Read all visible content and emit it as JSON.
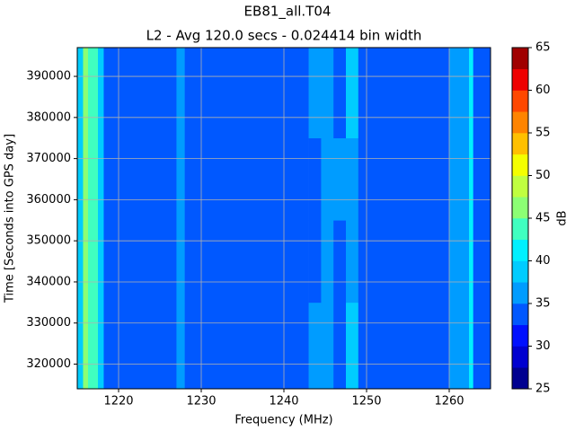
{
  "chart_data": {
    "type": "heatmap",
    "title": "EB81_all.T04",
    "subtitle": "L2 - Avg 120.0 secs - 0.024414 bin width",
    "xlabel": "Frequency (MHz)",
    "ylabel": "Time [Seconds into GPS day]",
    "colorbar_label": "dB",
    "x": [
      1215,
      1215.7,
      1216.3,
      1217.5,
      1218.2,
      1227,
      1228,
      1243,
      1244.5,
      1246,
      1247.5,
      1249,
      1260,
      1262.4,
      1262.9,
      1265
    ],
    "y": [
      314000,
      335000,
      355000,
      375000,
      397000
    ],
    "values": [
      [
        38,
        46,
        44,
        38,
        33,
        36,
        33,
        37,
        35,
        33,
        38,
        33,
        37,
        40,
        34
      ],
      [
        38,
        46,
        44,
        38,
        33,
        36,
        33,
        33,
        36,
        33,
        37,
        33,
        37,
        40,
        34
      ],
      [
        38,
        46,
        44,
        38,
        33,
        36,
        33,
        33,
        36,
        36,
        37,
        33,
        37,
        40,
        34
      ],
      [
        38,
        46,
        44,
        38,
        33,
        36,
        33,
        36,
        36,
        33,
        38,
        33,
        37,
        40,
        34
      ]
    ],
    "xlim": [
      1215,
      1265
    ],
    "ylim": [
      314000,
      397000
    ],
    "xticks": [
      1220,
      1230,
      1240,
      1250,
      1260
    ],
    "yticks": [
      320000,
      330000,
      340000,
      350000,
      360000,
      370000,
      380000,
      390000
    ],
    "clim": [
      25,
      65
    ],
    "cticks": [
      25,
      30,
      35,
      40,
      45,
      50,
      55,
      60,
      65
    ],
    "clevels": [
      25,
      27.5,
      30,
      32.5,
      35,
      37.5,
      40,
      42.5,
      45,
      47.5,
      50,
      52.5,
      55,
      57.5,
      60,
      62.5,
      65
    ],
    "colors": [
      "#000090",
      "#0000d0",
      "#0010ff",
      "#0058ff",
      "#009cff",
      "#00ccff",
      "#00f0ff",
      "#40ffc0",
      "#8cff74",
      "#c0ff40",
      "#f4ff00",
      "#ffc000",
      "#ff8400",
      "#ff4800",
      "#ee0000",
      "#a00000"
    ],
    "grid": true
  }
}
